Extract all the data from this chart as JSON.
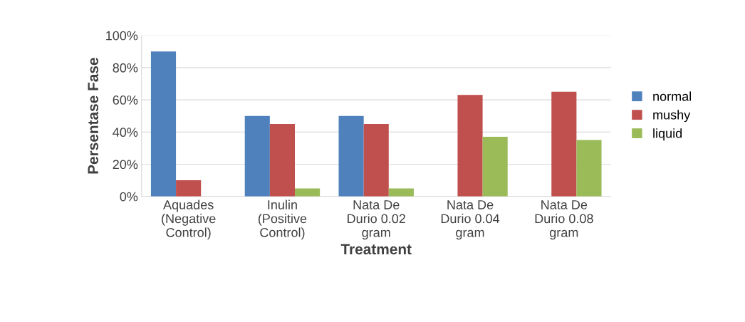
{
  "chart_data": {
    "type": "bar",
    "xlabel": "Treatment",
    "ylabel": "Persentase Fase",
    "categories": [
      "Aquades\n(Negative\nControl)",
      "Inulin\n(Positive\nControl)",
      "Nata De\nDurio 0.02\ngram",
      "Nata De\nDurio 0.04\ngram",
      "Nata De\nDurio 0.08\ngram"
    ],
    "series": [
      {
        "name": "normal",
        "color": "#4f81bd",
        "values": [
          90,
          50,
          50,
          0,
          0
        ]
      },
      {
        "name": "mushy",
        "color": "#c0504d",
        "values": [
          10,
          45,
          45,
          63,
          65
        ]
      },
      {
        "name": "liquid",
        "color": "#9bbb59",
        "values": [
          0,
          5,
          5,
          37,
          35
        ]
      }
    ],
    "ylim": [
      0,
      100
    ],
    "yticks": [
      {
        "value": 0,
        "label": "0%"
      },
      {
        "value": 20,
        "label": "20%"
      },
      {
        "value": 40,
        "label": "40%"
      },
      {
        "value": 60,
        "label": "60%"
      },
      {
        "value": 80,
        "label": "80%"
      },
      {
        "value": 100,
        "label": "100%"
      }
    ],
    "grid": "y",
    "legend": "right"
  }
}
